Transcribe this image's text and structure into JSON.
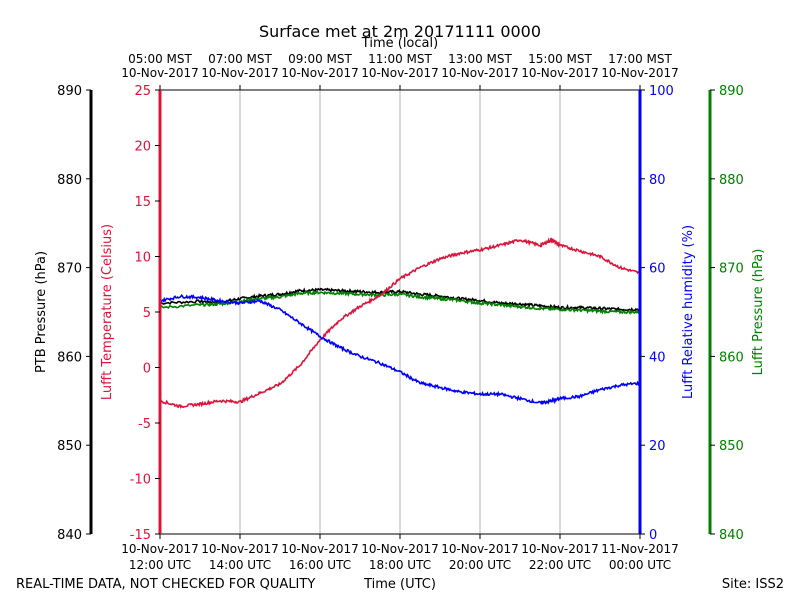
{
  "chart_data": {
    "type": "line",
    "title": "Surface met at 2m 20171111 0000",
    "top_axis_label": "Time (local)",
    "xlabel": "Time (UTC)",
    "footer_left": "REAL-TIME DATA, NOT CHECKED FOR QUALITY",
    "footer_right": "Site: ISS2",
    "x_range_hours_utc": [
      12,
      24
    ],
    "x_ticks": [
      {
        "hour": 12,
        "utc_date": "10-Nov-2017",
        "utc_time": "12:00 UTC",
        "local_time": "05:00 MST",
        "local_date": "10-Nov-2017"
      },
      {
        "hour": 14,
        "utc_date": "10-Nov-2017",
        "utc_time": "14:00 UTC",
        "local_time": "07:00 MST",
        "local_date": "10-Nov-2017"
      },
      {
        "hour": 16,
        "utc_date": "10-Nov-2017",
        "utc_time": "16:00 UTC",
        "local_time": "09:00 MST",
        "local_date": "10-Nov-2017"
      },
      {
        "hour": 18,
        "utc_date": "10-Nov-2017",
        "utc_time": "18:00 UTC",
        "local_time": "11:00 MST",
        "local_date": "10-Nov-2017"
      },
      {
        "hour": 20,
        "utc_date": "10-Nov-2017",
        "utc_time": "20:00 UTC",
        "local_time": "13:00 MST",
        "local_date": "10-Nov-2017"
      },
      {
        "hour": 22,
        "utc_date": "10-Nov-2017",
        "utc_time": "22:00 UTC",
        "local_time": "15:00 MST",
        "local_date": "10-Nov-2017"
      },
      {
        "hour": 24,
        "utc_date": "11-Nov-2017",
        "utc_time": "00:00 UTC",
        "local_time": "17:00 MST",
        "local_date": "10-Nov-2017"
      }
    ],
    "axes": {
      "ptb_pressure": {
        "label": "PTB Pressure (hPa)",
        "range": [
          840,
          890
        ],
        "ticks": [
          840,
          850,
          860,
          870,
          880,
          890
        ],
        "color": "#000000"
      },
      "temperature": {
        "label": "Lufft Temperature (Celsius)",
        "range": [
          -15,
          25
        ],
        "ticks": [
          -15,
          -10,
          -5,
          0,
          5,
          10,
          15,
          20,
          25
        ],
        "color": "#dc143c"
      },
      "humidity": {
        "label": "Lufft Relative humidity (%)",
        "range": [
          0,
          100
        ],
        "ticks": [
          0,
          20,
          40,
          60,
          80,
          100
        ],
        "color": "#0000ff"
      },
      "lufft_pressure": {
        "label": "Lufft Pressure (hPa)",
        "range": [
          840,
          890
        ],
        "ticks": [
          840,
          850,
          860,
          870,
          880,
          890
        ],
        "color": "#008000"
      }
    },
    "series": [
      {
        "name": "PTB Pressure",
        "axis": "ptb_pressure",
        "color": "#000000",
        "x": [
          12,
          13,
          13.5,
          14,
          14.5,
          15,
          15.5,
          16,
          16.5,
          17,
          17.5,
          18,
          18.5,
          19,
          19.5,
          20,
          20.5,
          21,
          21.5,
          22,
          22.5,
          23,
          23.5,
          24
        ],
        "y": [
          866.0,
          866.2,
          866.1,
          866.5,
          866.8,
          867.0,
          867.4,
          867.5,
          867.4,
          867.3,
          867.2,
          867.3,
          867.0,
          866.8,
          866.5,
          866.3,
          866.0,
          865.9,
          865.7,
          865.5,
          865.5,
          865.4,
          865.3,
          865.3
        ]
      },
      {
        "name": "Lufft Pressure",
        "axis": "lufft_pressure",
        "color": "#008000",
        "x": [
          12,
          13,
          13.5,
          14,
          14.5,
          15,
          15.5,
          16,
          16.5,
          17,
          17.5,
          18,
          18.5,
          19,
          19.5,
          20,
          20.5,
          21,
          21.5,
          22,
          22.5,
          23,
          23.5,
          24
        ],
        "y": [
          865.5,
          865.8,
          865.9,
          866.2,
          866.5,
          866.7,
          867.1,
          867.2,
          867.1,
          867.0,
          866.9,
          867.0,
          866.7,
          866.5,
          866.3,
          866.0,
          865.8,
          865.6,
          865.4,
          865.3,
          865.2,
          865.1,
          865.0,
          865.0
        ]
      },
      {
        "name": "Lufft Temperature",
        "axis": "temperature",
        "color": "#dc143c",
        "x": [
          12,
          12.5,
          13,
          13.5,
          14,
          14.5,
          15,
          15.5,
          16,
          16.5,
          17,
          17.5,
          18,
          18.5,
          19,
          19.5,
          20,
          20.5,
          21,
          21.5,
          21.8,
          22,
          22.5,
          23,
          23.5,
          24
        ],
        "y": [
          -3.0,
          -3.5,
          -3.3,
          -3.0,
          -3.1,
          -2.3,
          -1.5,
          0.2,
          2.5,
          4.3,
          5.5,
          6.5,
          8.0,
          9.0,
          9.8,
          10.3,
          10.6,
          11.0,
          11.5,
          11.0,
          11.5,
          11.0,
          10.5,
          10.0,
          9.0,
          8.5
        ]
      },
      {
        "name": "Lufft Relative humidity",
        "axis": "humidity",
        "color": "#0000ff",
        "x": [
          12,
          12.5,
          13,
          13.5,
          14,
          14.5,
          15,
          15.5,
          16,
          16.5,
          17,
          17.5,
          18,
          18.5,
          19,
          19.5,
          20,
          20.5,
          21,
          21.5,
          21.8,
          22,
          22.5,
          23,
          23.5,
          24
        ],
        "y": [
          52.5,
          53.5,
          53.3,
          52.5,
          52.0,
          52.5,
          50.5,
          47.5,
          44.5,
          42.0,
          40.0,
          38.5,
          36.5,
          34.0,
          33.0,
          32.0,
          31.5,
          31.5,
          30.5,
          29.5,
          30.0,
          30.5,
          31.0,
          32.5,
          33.5,
          34.0
        ]
      }
    ]
  }
}
